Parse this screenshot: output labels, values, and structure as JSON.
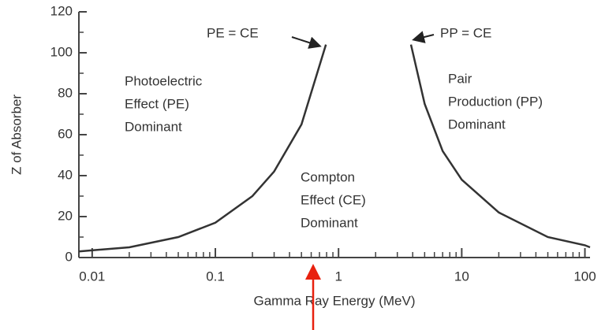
{
  "chart_data": {
    "type": "line",
    "xlabel": "Gamma Ray Energy (MeV)",
    "ylabel": "Z of Absorber",
    "xscale": "log",
    "xlim": [
      0.0078,
      110
    ],
    "ylim": [
      0,
      120
    ],
    "xticks": [
      0.01,
      0.1,
      1,
      10,
      100
    ],
    "xminorticks": [
      0.02,
      0.03,
      0.04,
      0.05,
      0.06,
      0.07,
      0.08,
      0.09,
      0.2,
      0.3,
      0.4,
      0.5,
      0.6,
      0.7,
      0.8,
      0.9,
      2,
      3,
      4,
      5,
      6,
      7,
      8,
      9,
      20,
      30,
      40,
      50,
      60,
      70,
      80,
      90
    ],
    "yticks": [
      0,
      20,
      40,
      60,
      80,
      100,
      120
    ],
    "yminorticks": [
      10,
      30,
      50,
      70,
      90,
      110
    ],
    "series": [
      {
        "color": "#333333",
        "x": [
          0.0078,
          0.02,
          0.05,
          0.1,
          0.2,
          0.3,
          0.5,
          0.79
        ],
        "values": [
          3,
          5,
          10,
          17,
          30,
          42,
          65,
          104
        ]
      },
      {
        "color": "#333333",
        "x": [
          3.87,
          5,
          7,
          10,
          20,
          50,
          100,
          110
        ],
        "values": [
          104,
          75,
          52,
          38,
          22,
          10,
          6,
          5
        ]
      }
    ],
    "annotations": [
      {
        "lines": [
          "Photoelectric",
          "Effect (PE)",
          "Dominant"
        ]
      },
      {
        "lines": [
          "Compton",
          "Effect (CE)",
          "Dominant"
        ]
      },
      {
        "lines": [
          "Pair",
          "Production (PP)",
          "Dominant"
        ]
      },
      {
        "lines": [
          "PE = CE"
        ]
      },
      {
        "lines": [
          "PP = CE"
        ]
      }
    ]
  }
}
